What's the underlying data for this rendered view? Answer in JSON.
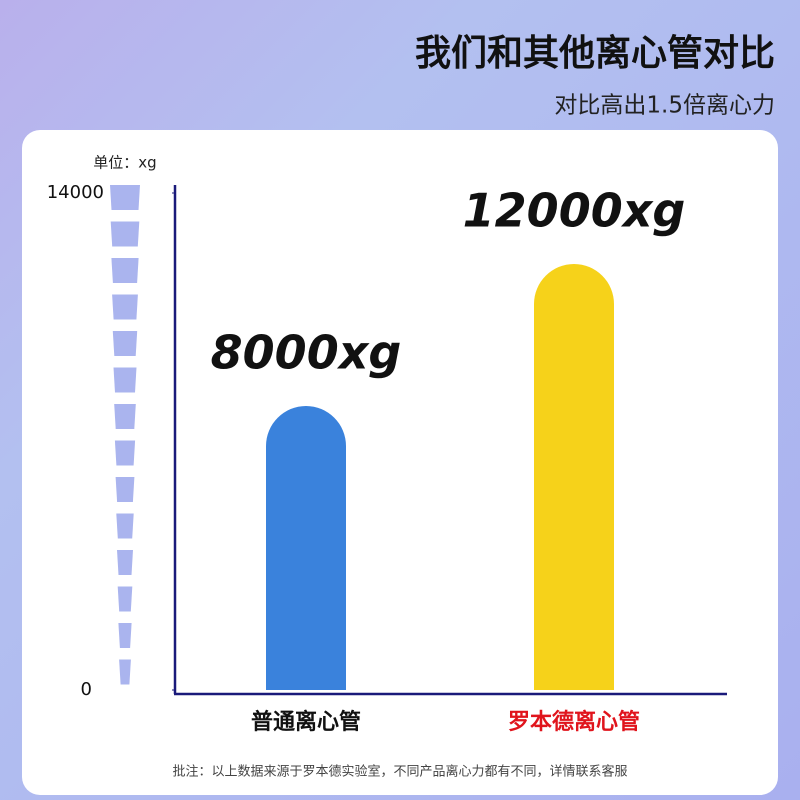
{
  "chart_data": {
    "type": "bar",
    "title": "我们和其他离心管对比",
    "subtitle": "对比高出1.5倍离心力",
    "y_unit": "单位：xg",
    "categories": [
      "普通离心管",
      "罗本德离心管"
    ],
    "values": [
      8000,
      12000
    ],
    "value_labels": [
      "8000xg",
      "12000xg"
    ],
    "colors": [
      "#3a82dc",
      "#f6d21a"
    ],
    "category_label_colors": [
      "#111111",
      "#e0141c"
    ],
    "ylim": [
      0,
      14000
    ],
    "yticks": [
      0,
      14000
    ],
    "grid": false,
    "footnote": "批注：以上数据来源于罗本德实验室，不同产品离心力都有不同，详情联系客服"
  }
}
